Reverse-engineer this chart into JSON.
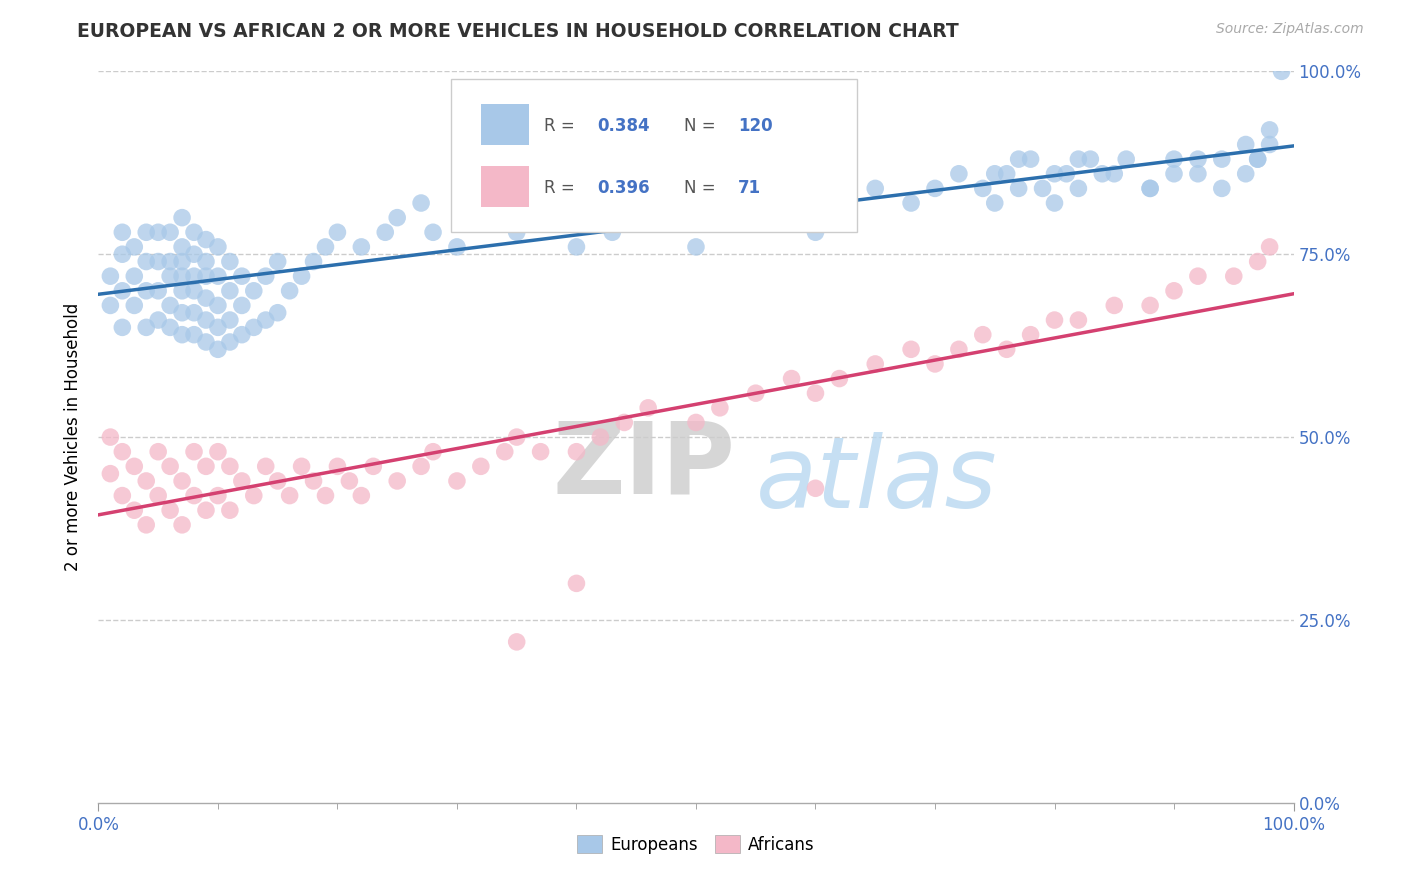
{
  "title": "EUROPEAN VS AFRICAN 2 OR MORE VEHICLES IN HOUSEHOLD CORRELATION CHART",
  "source": "Source: ZipAtlas.com",
  "ylabel": "2 or more Vehicles in Household",
  "blue_R": 0.384,
  "blue_N": 120,
  "pink_R": 0.396,
  "pink_N": 71,
  "blue_color": "#a8c8e8",
  "pink_color": "#f4b8c8",
  "blue_line_color": "#2c6fad",
  "pink_line_color": "#d44070",
  "watermark_zip": "ZIP",
  "watermark_atlas": "atlas",
  "xmin": 0.0,
  "xmax": 1.0,
  "ymin": 0.0,
  "ymax": 1.0,
  "blue_scatter_x": [
    0.01,
    0.01,
    0.02,
    0.02,
    0.02,
    0.02,
    0.03,
    0.03,
    0.03,
    0.04,
    0.04,
    0.04,
    0.04,
    0.05,
    0.05,
    0.05,
    0.05,
    0.06,
    0.06,
    0.06,
    0.06,
    0.06,
    0.07,
    0.07,
    0.07,
    0.07,
    0.07,
    0.07,
    0.07,
    0.08,
    0.08,
    0.08,
    0.08,
    0.08,
    0.08,
    0.09,
    0.09,
    0.09,
    0.09,
    0.09,
    0.09,
    0.1,
    0.1,
    0.1,
    0.1,
    0.1,
    0.11,
    0.11,
    0.11,
    0.11,
    0.12,
    0.12,
    0.12,
    0.13,
    0.13,
    0.14,
    0.14,
    0.15,
    0.15,
    0.16,
    0.17,
    0.18,
    0.19,
    0.2,
    0.22,
    0.24,
    0.25,
    0.27,
    0.28,
    0.3,
    0.32,
    0.33,
    0.35,
    0.37,
    0.4,
    0.43,
    0.46,
    0.48,
    0.5,
    0.52,
    0.54,
    0.57,
    0.6,
    0.62,
    0.65,
    0.68,
    0.7,
    0.72,
    0.75,
    0.77,
    0.8,
    0.82,
    0.85,
    0.88,
    0.9,
    0.92,
    0.94,
    0.96,
    0.97,
    0.98,
    0.74,
    0.76,
    0.78,
    0.8,
    0.82,
    0.84,
    0.86,
    0.88,
    0.9,
    0.92,
    0.94,
    0.96,
    0.97,
    0.98,
    0.99,
    0.75,
    0.77,
    0.79,
    0.81,
    0.83
  ],
  "blue_scatter_y": [
    0.68,
    0.72,
    0.65,
    0.7,
    0.75,
    0.78,
    0.68,
    0.72,
    0.76,
    0.65,
    0.7,
    0.74,
    0.78,
    0.66,
    0.7,
    0.74,
    0.78,
    0.65,
    0.68,
    0.72,
    0.74,
    0.78,
    0.64,
    0.67,
    0.7,
    0.72,
    0.74,
    0.76,
    0.8,
    0.64,
    0.67,
    0.7,
    0.72,
    0.75,
    0.78,
    0.63,
    0.66,
    0.69,
    0.72,
    0.74,
    0.77,
    0.62,
    0.65,
    0.68,
    0.72,
    0.76,
    0.63,
    0.66,
    0.7,
    0.74,
    0.64,
    0.68,
    0.72,
    0.65,
    0.7,
    0.66,
    0.72,
    0.67,
    0.74,
    0.7,
    0.72,
    0.74,
    0.76,
    0.78,
    0.76,
    0.78,
    0.8,
    0.82,
    0.78,
    0.76,
    0.8,
    0.82,
    0.78,
    0.8,
    0.76,
    0.78,
    0.8,
    0.82,
    0.76,
    0.8,
    0.82,
    0.84,
    0.78,
    0.82,
    0.84,
    0.82,
    0.84,
    0.86,
    0.82,
    0.84,
    0.86,
    0.88,
    0.86,
    0.84,
    0.88,
    0.86,
    0.88,
    0.9,
    0.88,
    0.92,
    0.84,
    0.86,
    0.88,
    0.82,
    0.84,
    0.86,
    0.88,
    0.84,
    0.86,
    0.88,
    0.84,
    0.86,
    0.88,
    0.9,
    1.0,
    0.86,
    0.88,
    0.84,
    0.86,
    0.88
  ],
  "pink_scatter_x": [
    0.01,
    0.01,
    0.02,
    0.02,
    0.03,
    0.03,
    0.04,
    0.04,
    0.05,
    0.05,
    0.06,
    0.06,
    0.07,
    0.07,
    0.08,
    0.08,
    0.09,
    0.09,
    0.1,
    0.1,
    0.11,
    0.11,
    0.12,
    0.13,
    0.14,
    0.15,
    0.16,
    0.17,
    0.18,
    0.19,
    0.2,
    0.21,
    0.22,
    0.23,
    0.25,
    0.27,
    0.28,
    0.3,
    0.32,
    0.34,
    0.35,
    0.37,
    0.4,
    0.42,
    0.44,
    0.46,
    0.5,
    0.52,
    0.55,
    0.58,
    0.6,
    0.62,
    0.65,
    0.68,
    0.7,
    0.72,
    0.74,
    0.76,
    0.78,
    0.8,
    0.82,
    0.85,
    0.88,
    0.9,
    0.92,
    0.95,
    0.97,
    0.98,
    0.35,
    0.4,
    0.6
  ],
  "pink_scatter_y": [
    0.45,
    0.5,
    0.42,
    0.48,
    0.4,
    0.46,
    0.38,
    0.44,
    0.42,
    0.48,
    0.4,
    0.46,
    0.38,
    0.44,
    0.42,
    0.48,
    0.4,
    0.46,
    0.42,
    0.48,
    0.4,
    0.46,
    0.44,
    0.42,
    0.46,
    0.44,
    0.42,
    0.46,
    0.44,
    0.42,
    0.46,
    0.44,
    0.42,
    0.46,
    0.44,
    0.46,
    0.48,
    0.44,
    0.46,
    0.48,
    0.5,
    0.48,
    0.48,
    0.5,
    0.52,
    0.54,
    0.52,
    0.54,
    0.56,
    0.58,
    0.56,
    0.58,
    0.6,
    0.62,
    0.6,
    0.62,
    0.64,
    0.62,
    0.64,
    0.66,
    0.66,
    0.68,
    0.68,
    0.7,
    0.72,
    0.72,
    0.74,
    0.76,
    0.22,
    0.3,
    0.43
  ]
}
